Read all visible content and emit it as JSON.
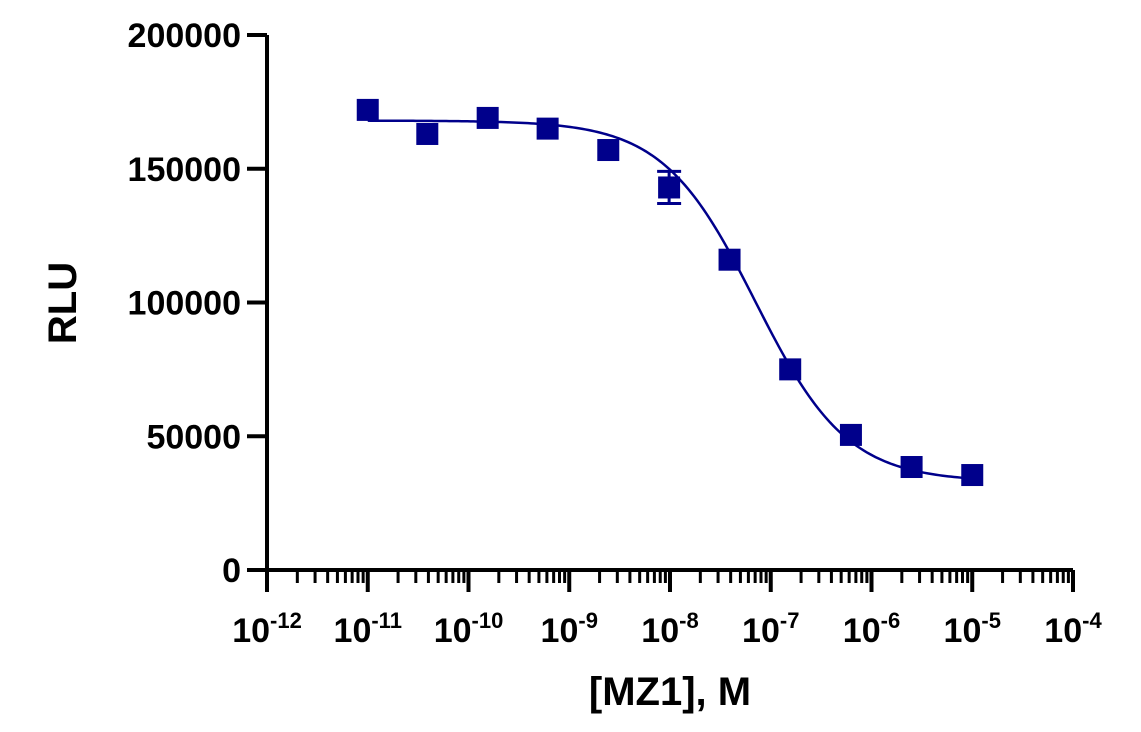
{
  "chart_data": {
    "type": "scatter",
    "title": "",
    "xlabel": "[MZ1], M",
    "ylabel": "RLU",
    "x_scale": "log",
    "xlim": [
      1e-12,
      0.0001
    ],
    "ylim": [
      0,
      200000
    ],
    "grid": false,
    "color": "#00008B",
    "x_ticks": [
      {
        "base": "10",
        "exp": "-12",
        "value": 1e-12
      },
      {
        "base": "10",
        "exp": "-11",
        "value": 1e-11
      },
      {
        "base": "10",
        "exp": "-10",
        "value": 1e-10
      },
      {
        "base": "10",
        "exp": "-9",
        "value": 1e-09
      },
      {
        "base": "10",
        "exp": "-8",
        "value": 1e-08
      },
      {
        "base": "10",
        "exp": "-7",
        "value": 1e-07
      },
      {
        "base": "10",
        "exp": "-6",
        "value": 1e-06
      },
      {
        "base": "10",
        "exp": "-5",
        "value": 1e-05
      },
      {
        "base": "10",
        "exp": "-4",
        "value": 0.0001
      }
    ],
    "y_ticks": [
      {
        "label": "0",
        "value": 0
      },
      {
        "label": "50000",
        "value": 50000
      },
      {
        "label": "100000",
        "value": 100000
      },
      {
        "label": "150000",
        "value": 150000
      },
      {
        "label": "200000",
        "value": 200000
      }
    ],
    "points": [
      {
        "x": 1e-11,
        "y": 172000
      },
      {
        "x": 3.9e-11,
        "y": 163000
      },
      {
        "x": 1.55e-10,
        "y": 169000
      },
      {
        "x": 6.1e-10,
        "y": 165000
      },
      {
        "x": 2.44e-09,
        "y": 157000
      },
      {
        "x": 9.8e-09,
        "y": 143000,
        "err": 6000
      },
      {
        "x": 3.9e-08,
        "y": 116000
      },
      {
        "x": 1.56e-07,
        "y": 75000
      },
      {
        "x": 6.25e-07,
        "y": 50500
      },
      {
        "x": 2.5e-06,
        "y": 38500
      },
      {
        "x": 1e-05,
        "y": 35500
      }
    ],
    "fit": {
      "model": "four-parameter logistic",
      "top": 168000,
      "bottom": 33000,
      "ec50": 7e-08,
      "hill": 0.95,
      "x_range": [
        1e-11,
        1e-05
      ]
    }
  }
}
